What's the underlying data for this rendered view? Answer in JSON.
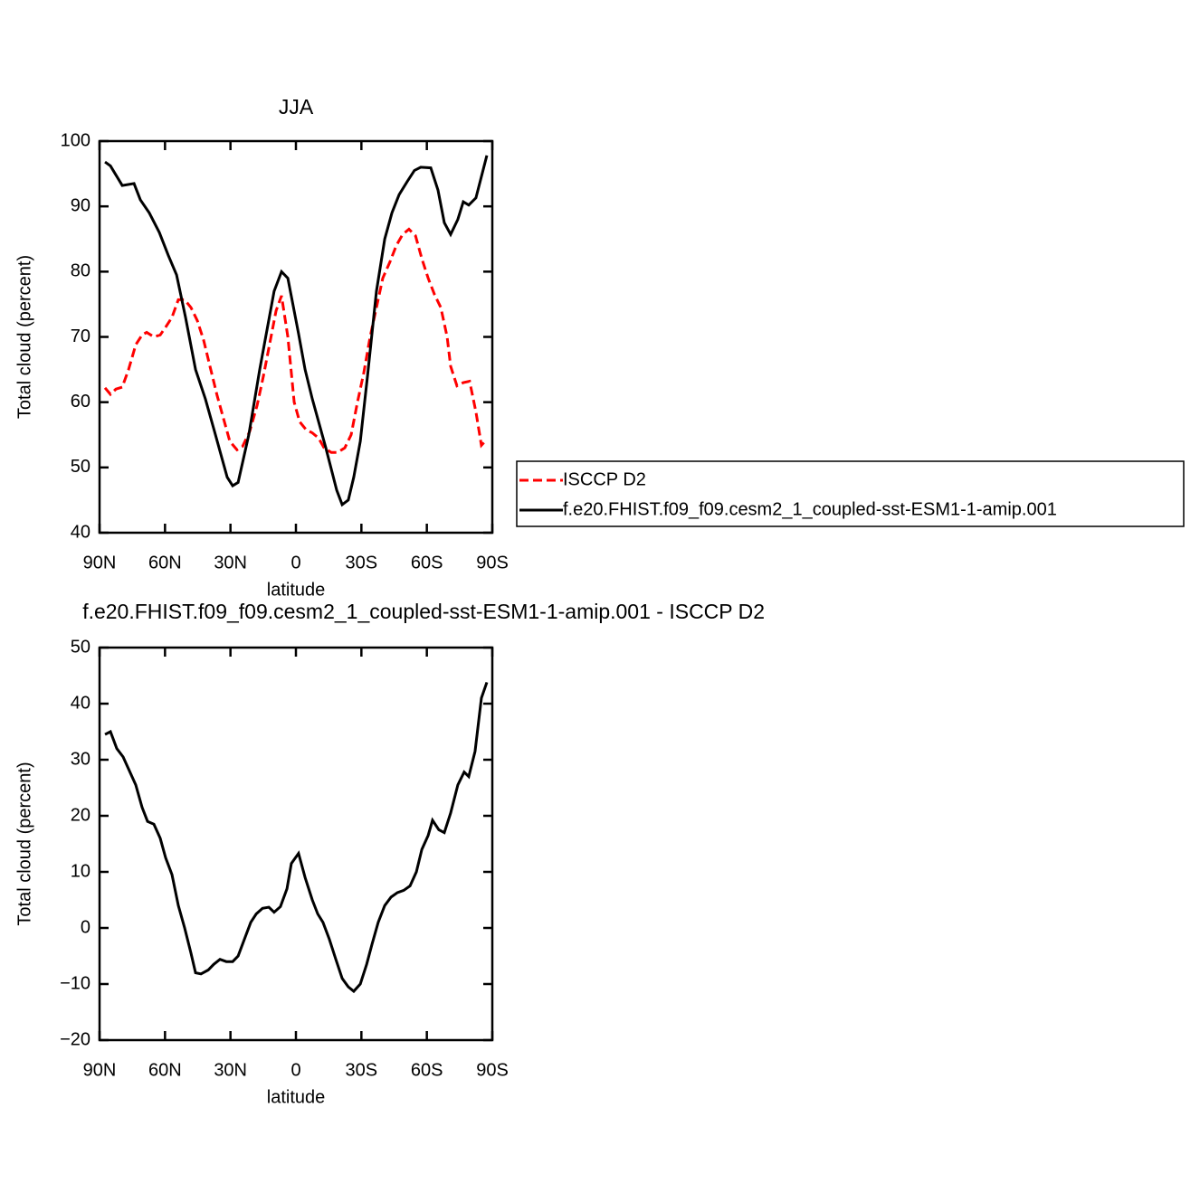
{
  "chart_data": [
    {
      "type": "line",
      "title": "JJA",
      "x_label": "latitude",
      "y_label": "Total cloud (percent)",
      "xlim": [
        90,
        -90
      ],
      "xticks": [
        {
          "value": 90,
          "label": "90N"
        },
        {
          "value": 60,
          "label": "60N"
        },
        {
          "value": 30,
          "label": "30N"
        },
        0,
        {
          "value": -30,
          "label": "30S"
        },
        {
          "value": -60,
          "label": "60S"
        },
        {
          "value": -90,
          "label": "90S"
        }
      ],
      "ylim": [
        40,
        100
      ],
      "yticks": [
        40,
        50,
        60,
        70,
        80,
        90,
        100
      ],
      "legend": "right",
      "series": [
        {
          "name": "ISCCP D2",
          "color": "#ff0000",
          "line_style": "dashed",
          "x": [
            87.5,
            85,
            82.5,
            79.6,
            76.7,
            73.4,
            70.5,
            68.4,
            65.1,
            62.2,
            59.7,
            56.8,
            53.9,
            51,
            48.1,
            45.2,
            42.3,
            39.4,
            36.1,
            33.2,
            30.3,
            27,
            24.5,
            21.2,
            17.8,
            14.9,
            12,
            9.1,
            6.6,
            3.7,
            0.8,
            -1.7,
            -4.6,
            -7.5,
            -10.4,
            -12.9,
            -16.2,
            -19.1,
            -22.4,
            -25.3,
            -28.2,
            -31.1,
            -34,
            -36.9,
            -39.8,
            -43.1,
            -46,
            -48.9,
            -51.8,
            -54.8,
            -57.7,
            -60.6,
            -63.5,
            -66.4,
            -69.3,
            -70.9,
            -73.8,
            -76.7,
            -79.6,
            -82.5,
            -85,
            -87.5
          ],
          "values": [
            62.2,
            61.2,
            62,
            62.3,
            65,
            68.8,
            70.3,
            70.7,
            70,
            70.3,
            71.5,
            73,
            75.7,
            75.7,
            74.5,
            72.5,
            69.5,
            65.5,
            61,
            57.5,
            54,
            52.7,
            53.2,
            55.5,
            59.5,
            64,
            69,
            74,
            76.3,
            70,
            60,
            57,
            55.8,
            55.3,
            54.5,
            53,
            52.3,
            52.3,
            53,
            55,
            60,
            64.5,
            70,
            74.5,
            79,
            81.5,
            84,
            85.7,
            86.5,
            85.5,
            82,
            79,
            76.5,
            74.5,
            70,
            65.5,
            62.5,
            63,
            63.2,
            58.5,
            53.4,
            54.3
          ]
        },
        {
          "name": "f.e20.FHIST.f09_f09.cesm2_1_coupled-sst-ESM1-1-amip.001",
          "color": "#000000",
          "line_style": "solid",
          "x": [
            87.5,
            85,
            79.6,
            74.2,
            71.3,
            67.2,
            62.6,
            58.5,
            54.7,
            50.6,
            46,
            41.5,
            37.3,
            31.5,
            29,
            26.5,
            21.6,
            16.6,
            10,
            6.6,
            3.7,
            -1.2,
            -4.2,
            -7.5,
            -13.7,
            -18.7,
            -21.2,
            -24,
            -26.5,
            -29.5,
            -32.8,
            -36.9,
            -40.7,
            -44,
            -47.3,
            -51,
            -54.3,
            -57.2,
            -61.8,
            -65.1,
            -68,
            -70.9,
            -74.2,
            -76.7,
            -79.2,
            -82.5,
            -87.5
          ],
          "values": [
            96.8,
            96.2,
            93.2,
            93.5,
            91,
            89,
            86,
            82.5,
            79.5,
            73,
            65,
            60.5,
            55.5,
            48.5,
            47.2,
            47.7,
            55,
            65,
            77,
            80,
            79,
            70.5,
            65,
            60.5,
            53,
            46.5,
            44.3,
            45,
            48.5,
            54,
            64,
            77,
            85,
            89,
            91.8,
            93.8,
            95.5,
            96,
            95.9,
            92.5,
            87.5,
            85.7,
            88,
            90.7,
            90.2,
            91.3,
            97.8
          ]
        }
      ]
    },
    {
      "type": "line",
      "title": "f.e20.FHIST.f09_f09.cesm2_1_coupled-sst-ESM1-1-amip.001 - ISCCP D2",
      "x_label": "latitude",
      "y_label": "Total cloud (percent)",
      "xlim": [
        90,
        -90
      ],
      "xticks": [
        {
          "value": 90,
          "label": "90N"
        },
        {
          "value": 60,
          "label": "60N"
        },
        {
          "value": 30,
          "label": "30N"
        },
        0,
        {
          "value": -30,
          "label": "30S"
        },
        {
          "value": -60,
          "label": "60S"
        },
        {
          "value": -90,
          "label": "90S"
        }
      ],
      "ylim": [
        -20,
        50
      ],
      "yticks": [
        {
          "value": -20,
          "label": "−20"
        },
        {
          "value": -10,
          "label": "−10"
        },
        0,
        10,
        20,
        30,
        40,
        50
      ],
      "series": [
        {
          "color": "#000000",
          "line_style": "solid",
          "x": [
            87.5,
            85,
            82.1,
            79.2,
            76.3,
            73.4,
            70.5,
            68,
            65.1,
            62.2,
            59.7,
            56.8,
            53.9,
            51,
            48.1,
            46,
            43.5,
            40.2,
            37.7,
            34.8,
            31.9,
            29,
            26.5,
            23.6,
            20.7,
            18.2,
            15.3,
            12.4,
            10,
            7.1,
            4.1,
            2.1,
            -1.2,
            -4.2,
            -7.5,
            -10,
            -12.4,
            -15.3,
            -18.2,
            -21.2,
            -24,
            -26.5,
            -29.5,
            -32.4,
            -34.8,
            -37.7,
            -40.7,
            -43.6,
            -46.5,
            -49.4,
            -52.3,
            -55.2,
            -57.7,
            -60.6,
            -62.6,
            -65.5,
            -68,
            -70.9,
            -74.2,
            -77.1,
            -79.2,
            -82.1,
            -85,
            -87.5
          ],
          "values": [
            34.5,
            35,
            32,
            30.5,
            28,
            25.5,
            21.5,
            19,
            18.5,
            16,
            12.5,
            9.5,
            4,
            0,
            -4.5,
            -8,
            -8.2,
            -7.5,
            -6.5,
            -5.6,
            -6,
            -6,
            -5,
            -2,
            1,
            2.5,
            3.5,
            3.7,
            2.8,
            3.8,
            7,
            11.5,
            13.3,
            9,
            5,
            2.5,
            1,
            -2,
            -5.5,
            -9,
            -10.5,
            -11.3,
            -10,
            -6.5,
            -3,
            1,
            4,
            5.5,
            6.3,
            6.7,
            7.5,
            10,
            14,
            16.5,
            19.2,
            17.5,
            17,
            20.5,
            25.5,
            27.8,
            27,
            31.5,
            41,
            43.8
          ]
        }
      ]
    }
  ]
}
